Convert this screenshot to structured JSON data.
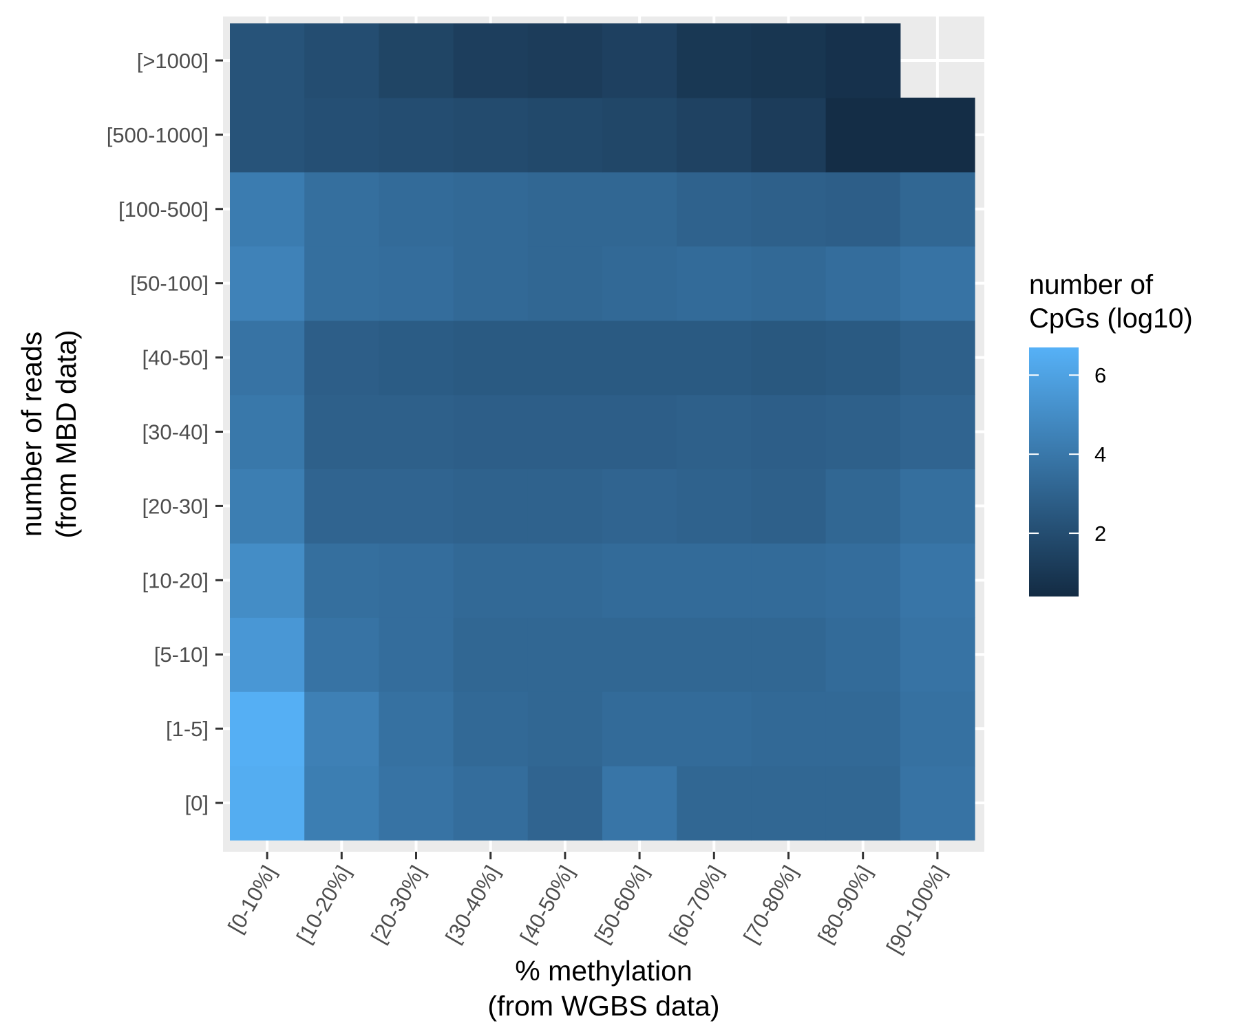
{
  "chart_data": {
    "type": "heatmap",
    "xlabel": [
      "% methylation",
      "(from WGBS data)"
    ],
    "ylabel": [
      "number of reads",
      "(from MBD data)"
    ],
    "x_categories": [
      "[0-10%]",
      "[10-20%]",
      "[20-30%]",
      "[30-40%]",
      "[40-50%]",
      "[50-60%]",
      "[60-70%]",
      "[70-80%]",
      "[80-90%]",
      "[90-100%]"
    ],
    "y_categories": [
      "[0]",
      "[1-5]",
      "[5-10]",
      "[10-20]",
      "[20-30]",
      "[30-40]",
      "[40-50]",
      "[50-100]",
      "[100-500]",
      "[500-1000]",
      "[>1000]"
    ],
    "values": [
      [
        6.5,
        4.3,
        3.8,
        3.5,
        3.1,
        3.9,
        3.2,
        3.2,
        3.2,
        3.8
      ],
      [
        6.6,
        4.4,
        3.7,
        3.3,
        3.2,
        3.4,
        3.4,
        3.3,
        3.3,
        3.7
      ],
      [
        5.5,
        3.8,
        3.5,
        3.2,
        3.2,
        3.2,
        3.2,
        3.2,
        3.4,
        3.8
      ],
      [
        5.0,
        3.6,
        3.5,
        3.3,
        3.3,
        3.4,
        3.4,
        3.4,
        3.5,
        3.9
      ],
      [
        4.3,
        3.1,
        3.1,
        3.0,
        3.0,
        3.1,
        3.0,
        2.9,
        3.2,
        3.6
      ],
      [
        4.0,
        2.9,
        2.9,
        2.8,
        2.8,
        2.8,
        2.9,
        2.8,
        2.9,
        3.1
      ],
      [
        3.8,
        2.8,
        2.7,
        2.6,
        2.6,
        2.6,
        2.6,
        2.5,
        2.6,
        2.9
      ],
      [
        4.5,
        3.6,
        3.5,
        3.3,
        3.2,
        3.3,
        3.4,
        3.3,
        3.5,
        3.8
      ],
      [
        4.2,
        3.6,
        3.4,
        3.3,
        3.2,
        3.2,
        3.0,
        2.9,
        2.8,
        3.2
      ],
      [
        2.3,
        2.1,
        2.0,
        1.9,
        1.8,
        1.7,
        1.5,
        1.2,
        0.5,
        0.5
      ],
      [
        2.3,
        2.0,
        1.6,
        1.3,
        1.2,
        1.4,
        1.0,
        0.9,
        0.7,
        null
      ]
    ],
    "legend": {
      "title": [
        "number of",
        "CpGs (log10)"
      ],
      "ticks": [
        2,
        4,
        6
      ],
      "min": 0.4,
      "max": 6.7,
      "low_color": "#132B43",
      "high_color": "#56B1F7",
      "position": "right"
    },
    "panel_background": "#EBEBEB",
    "grid_color": "#FFFFFF",
    "grid": true
  }
}
